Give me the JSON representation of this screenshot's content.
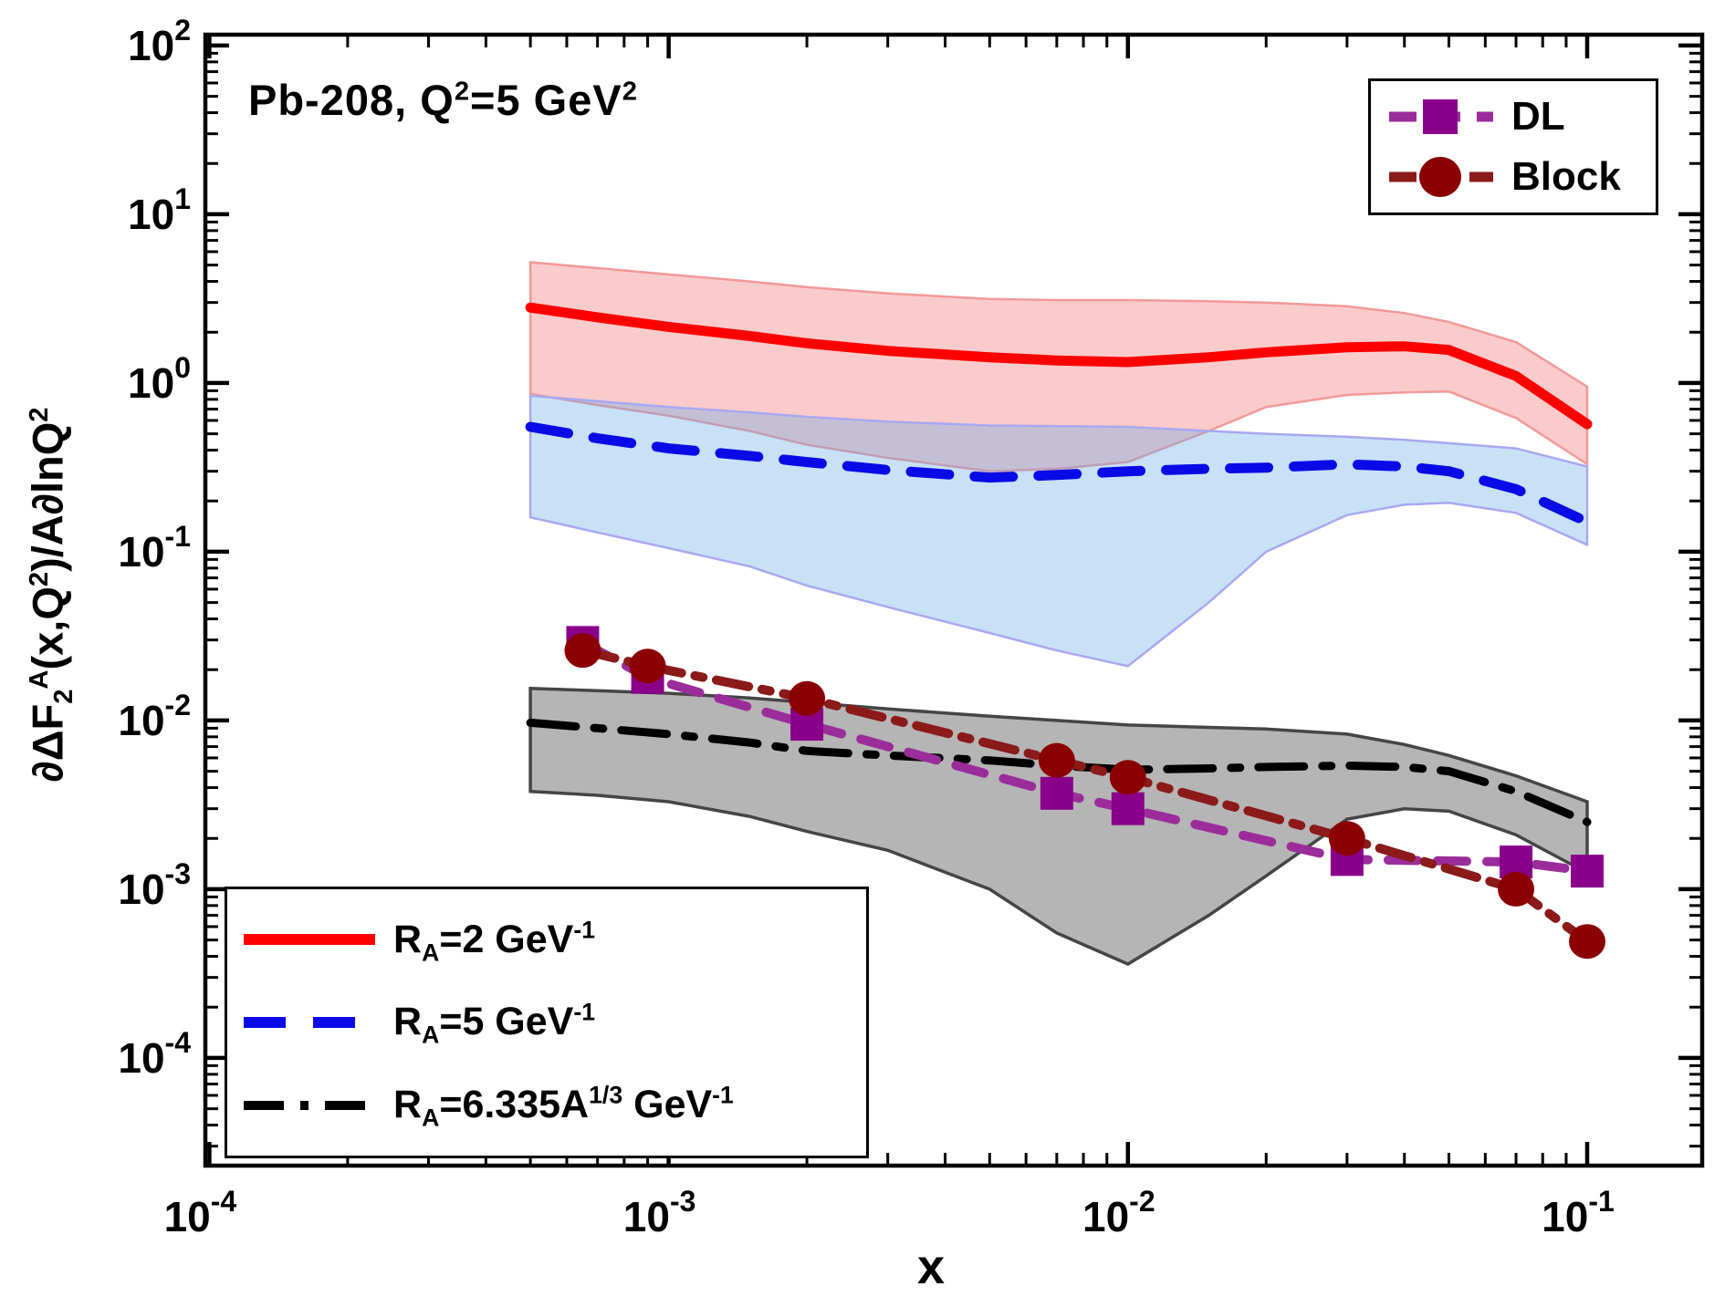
{
  "figure": {
    "title": "Pb-208, Q^{2}=5 GeV^{2}",
    "x_axis": {
      "label": "x",
      "tick_labels": [
        "10^{-4}",
        "10^{-3}",
        "10^{-2}",
        "10^{-1}"
      ],
      "tick_values": [
        0.0001,
        0.001,
        0.01,
        0.1
      ]
    },
    "y_axis": {
      "label": "∂ΔF_{2}^{A}(x,Q^{2})/A∂lnQ^{2}",
      "tick_labels": [
        "10^{2}",
        "10^{1}",
        "10^{0}",
        "10^{-1}",
        "10^{-2}",
        "10^{-3}",
        "10^{-4}"
      ],
      "tick_values": [
        100,
        10,
        1,
        0.1,
        0.01,
        0.001,
        0.0001
      ]
    }
  },
  "legend_models": {
    "entries": [
      {
        "label": "DL",
        "marker": "square"
      },
      {
        "label": "Block",
        "marker": "circle"
      }
    ]
  },
  "legend_radii": {
    "entries": [
      {
        "label": "R_{A}=2 GeV^{-1}",
        "style": "solid"
      },
      {
        "label": "R_{A}=5 GeV^{-1}",
        "style": "dashed"
      },
      {
        "label": "R_{A}=6.335A^{1/3} GeV^{-1}",
        "style": "dashdot"
      }
    ]
  },
  "colors": {
    "red_line": "#FF0000",
    "red_band_fill": "rgba(242,96,96,0.33)",
    "red_band_edge": "rgba(238,140,140,0.85)",
    "blue_line": "#0A0AE6",
    "blue_band_fill": "rgba(96,168,232,0.35)",
    "blue_band_edge": "#A8A8F0",
    "black_line": "#000000",
    "gray_band_fill": "rgba(60,60,60,0.38)",
    "gray_band_edge": "#454545",
    "dl_marker": "#8B008B",
    "dl_line": "#9B2D9B",
    "block_marker": "#8B0000",
    "block_line": "#8B1A1A",
    "frame": "#000000",
    "text": "#000000"
  },
  "chart_data": {
    "type": "line",
    "title": "Pb-208, Q^2=5 GeV^2",
    "xlabel": "x",
    "ylabel": "dDeltaF2^A(x,Q^2)/A dlnQ^2",
    "x_scale": "log",
    "y_scale": "log",
    "x_range": [
      9.8e-05,
      0.178
    ],
    "y_range": [
      2.3e-05,
      116
    ],
    "grid": false,
    "legend_positions": [
      "top-right (models)",
      "bottom-left (radii)"
    ],
    "series": [
      {
        "id": "ra2",
        "name": "R_A=2 GeV^-1",
        "style": "solid",
        "color_key": "red_line",
        "band_fill_key": "red_band_fill",
        "band_edge_key": "red_band_edge",
        "x": [
          0.0005,
          0.0007,
          0.001,
          0.0015,
          0.002,
          0.003,
          0.005,
          0.007,
          0.01,
          0.015,
          0.02,
          0.03,
          0.04,
          0.05,
          0.07,
          0.1
        ],
        "y": [
          2.8,
          2.45,
          2.15,
          1.9,
          1.72,
          1.55,
          1.42,
          1.36,
          1.33,
          1.42,
          1.52,
          1.63,
          1.65,
          1.57,
          1.1,
          0.57
        ],
        "band_upper": [
          5.2,
          4.8,
          4.4,
          4.0,
          3.7,
          3.4,
          3.15,
          3.1,
          3.1,
          3.05,
          3.0,
          2.85,
          2.6,
          2.3,
          1.75,
          0.95
        ],
        "band_lower": [
          0.86,
          0.74,
          0.64,
          0.52,
          0.43,
          0.36,
          0.3,
          0.31,
          0.34,
          0.52,
          0.72,
          0.85,
          0.88,
          0.89,
          0.62,
          0.33
        ]
      },
      {
        "id": "ra5",
        "name": "R_A=5 GeV^-1",
        "style": "dashed",
        "color_key": "blue_line",
        "band_fill_key": "blue_band_fill",
        "band_edge_key": "blue_band_edge",
        "x": [
          0.0005,
          0.0007,
          0.001,
          0.0015,
          0.002,
          0.003,
          0.005,
          0.007,
          0.01,
          0.015,
          0.02,
          0.03,
          0.04,
          0.05,
          0.07,
          0.1
        ],
        "y": [
          0.55,
          0.47,
          0.41,
          0.37,
          0.34,
          0.305,
          0.275,
          0.285,
          0.3,
          0.31,
          0.315,
          0.33,
          0.32,
          0.3,
          0.235,
          0.15
        ],
        "band_upper": [
          0.84,
          0.78,
          0.72,
          0.67,
          0.63,
          0.59,
          0.56,
          0.555,
          0.55,
          0.52,
          0.5,
          0.48,
          0.46,
          0.44,
          0.41,
          0.32
        ],
        "band_lower": [
          0.16,
          0.13,
          0.105,
          0.082,
          0.063,
          0.047,
          0.033,
          0.026,
          0.021,
          0.05,
          0.1,
          0.165,
          0.19,
          0.195,
          0.17,
          0.11
        ]
      },
      {
        "id": "ra6335",
        "name": "R_A=6.335A^1/3 GeV^-1",
        "style": "dashdot",
        "color_key": "black_line",
        "band_fill_key": "gray_band_fill",
        "band_edge_key": "gray_band_edge",
        "x": [
          0.0005,
          0.0007,
          0.001,
          0.0015,
          0.002,
          0.003,
          0.005,
          0.007,
          0.01,
          0.015,
          0.02,
          0.03,
          0.04,
          0.05,
          0.07,
          0.1
        ],
        "y": [
          0.0097,
          0.009,
          0.0083,
          0.0074,
          0.0066,
          0.0062,
          0.0058,
          0.0054,
          0.0051,
          0.0052,
          0.0053,
          0.0054,
          0.0053,
          0.005,
          0.0038,
          0.0025
        ],
        "band_upper": [
          0.0155,
          0.015,
          0.0145,
          0.0136,
          0.0128,
          0.0117,
          0.0106,
          0.01,
          0.0094,
          0.0091,
          0.0089,
          0.0083,
          0.0072,
          0.0062,
          0.0047,
          0.0033
        ],
        "band_lower": [
          0.0038,
          0.0036,
          0.0033,
          0.0027,
          0.0022,
          0.0017,
          0.001,
          0.00055,
          0.00036,
          0.0007,
          0.0012,
          0.0026,
          0.003,
          0.0029,
          0.0021,
          0.00125
        ]
      },
      {
        "id": "dl",
        "name": "DL",
        "style": "scatter-dashed",
        "marker": "square",
        "color_key": "dl_marker",
        "line_color_key": "dl_line",
        "x": [
          0.00065,
          0.0009,
          0.002,
          0.007,
          0.01,
          0.03,
          0.07,
          0.1
        ],
        "y": [
          0.029,
          0.018,
          0.0095,
          0.0037,
          0.003,
          0.0015,
          0.00145,
          0.00128
        ]
      },
      {
        "id": "block",
        "name": "Block",
        "style": "scatter-dashdot",
        "marker": "circle",
        "color_key": "block_marker",
        "line_color_key": "block_line",
        "x": [
          0.00065,
          0.0009,
          0.002,
          0.007,
          0.01,
          0.03,
          0.07,
          0.1
        ],
        "y": [
          0.026,
          0.021,
          0.0135,
          0.0058,
          0.0046,
          0.002,
          0.001,
          0.00049
        ]
      }
    ]
  }
}
